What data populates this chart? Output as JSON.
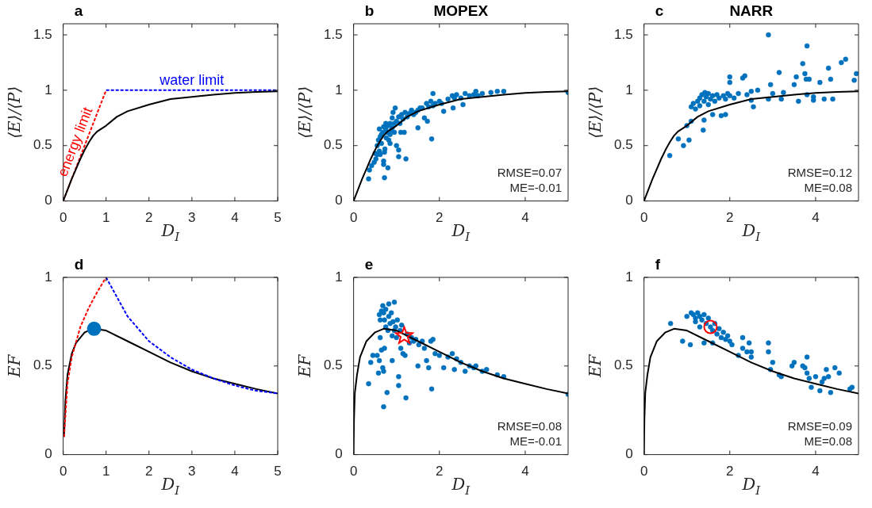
{
  "chart_data": [
    {
      "type": "line",
      "xlabel": "D$_{I}$",
      "ylabel": "⟨E⟩/⟨P⟩",
      "xlim": [
        0,
        5
      ],
      "ylim": [
        0,
        1.6
      ],
      "xticks": [
        0,
        1,
        2,
        3,
        4,
        5
      ],
      "yticks": [
        0,
        0.5,
        1,
        1.5
      ],
      "annotations": [
        "a",
        "energy limit",
        "water limit"
      ],
      "series": [
        {
          "color": "#ff0000",
          "line_style": "dashed",
          "x": [
            0,
            1
          ],
          "values": [
            0,
            1
          ]
        },
        {
          "color": "#0000ff",
          "line_style": "dashed",
          "x": [
            1,
            5
          ],
          "values": [
            1,
            1
          ]
        },
        {
          "color": "#000000",
          "line_style": "solid",
          "x": [
            0,
            0.1,
            0.2,
            0.3,
            0.4,
            0.5,
            0.6,
            0.7,
            0.8,
            1,
            1.25,
            1.5,
            2,
            2.5,
            3,
            3.5,
            4,
            4.5,
            5
          ],
          "values": [
            0,
            0.1,
            0.2,
            0.29,
            0.38,
            0.46,
            0.53,
            0.59,
            0.63,
            0.68,
            0.76,
            0.81,
            0.87,
            0.92,
            0.94,
            0.96,
            0.975,
            0.985,
            0.99
          ]
        }
      ]
    },
    {
      "type": "scatter",
      "title": "MOPEX",
      "xlabel": "D$_{I}$",
      "ylabel": "⟨E⟩/⟨P⟩",
      "xlim": [
        0,
        5
      ],
      "ylim": [
        0,
        1.6
      ],
      "xticks": [
        0,
        2,
        4
      ],
      "yticks": [
        0,
        0.5,
        1,
        1.5
      ],
      "annotations": [
        "b",
        "RMSE=0.07",
        "ME=-0.01"
      ],
      "series": [
        {
          "color": "#0072bd",
          "marker": "circle",
          "x": [
            0.35,
            0.37,
            0.42,
            0.48,
            0.5,
            0.52,
            0.55,
            0.55,
            0.58,
            0.6,
            0.6,
            0.62,
            0.62,
            0.65,
            0.65,
            0.68,
            0.7,
            0.7,
            0.7,
            0.72,
            0.72,
            0.73,
            0.75,
            0.75,
            0.76,
            0.78,
            0.8,
            0.8,
            0.82,
            0.85,
            0.85,
            0.85,
            0.88,
            0.9,
            0.9,
            0.92,
            0.95,
            0.95,
            0.97,
            1.0,
            1.0,
            1.05,
            1.05,
            1.05,
            1.08,
            1.1,
            1.12,
            1.15,
            1.18,
            1.2,
            1.22,
            1.25,
            1.3,
            1.35,
            1.4,
            1.45,
            1.5,
            1.5,
            1.55,
            1.6,
            1.65,
            1.7,
            1.72,
            1.75,
            1.8,
            1.82,
            1.85,
            1.85,
            1.9,
            2.0,
            2.05,
            2.1,
            2.2,
            2.3,
            2.32,
            2.35,
            2.4,
            2.5,
            2.55,
            2.6,
            2.7,
            2.8,
            2.85,
            2.9,
            3.0,
            3.2,
            3.35,
            3.5,
            5.0
          ],
          "values": [
            0.2,
            0.28,
            0.32,
            0.35,
            0.43,
            0.38,
            0.42,
            0.5,
            0.55,
            0.45,
            0.65,
            0.58,
            0.42,
            0.6,
            0.52,
            0.62,
            0.33,
            0.36,
            0.67,
            0.44,
            0.21,
            0.47,
            0.65,
            0.7,
            0.57,
            0.62,
            0.68,
            0.3,
            0.55,
            0.7,
            0.6,
            0.52,
            0.64,
            0.75,
            0.66,
            0.8,
            0.62,
            0.7,
            0.84,
            0.72,
            0.5,
            0.4,
            0.46,
            0.76,
            0.7,
            0.62,
            0.78,
            0.74,
            0.62,
            0.8,
            0.38,
            0.76,
            0.79,
            0.82,
            0.78,
            0.8,
            0.66,
            0.82,
            0.84,
            0.84,
            0.75,
            0.88,
            0.72,
            0.85,
            0.9,
            0.56,
            0.97,
            0.86,
            0.88,
            0.9,
            0.88,
            0.81,
            0.92,
            0.95,
            0.84,
            0.93,
            0.96,
            0.93,
            0.87,
            0.97,
            0.95,
            0.96,
            0.99,
            0.95,
            0.97,
            0.98,
            0.99,
            0.99,
            0.98
          ]
        },
        {
          "type": "line",
          "color": "#000000",
          "line_style": "solid",
          "x": [
            0,
            0.1,
            0.2,
            0.3,
            0.4,
            0.5,
            0.6,
            0.7,
            0.8,
            1,
            1.25,
            1.5,
            2,
            2.5,
            3,
            3.5,
            4,
            4.5,
            5
          ],
          "values": [
            0,
            0.1,
            0.2,
            0.29,
            0.38,
            0.46,
            0.53,
            0.59,
            0.63,
            0.68,
            0.76,
            0.81,
            0.87,
            0.92,
            0.94,
            0.96,
            0.975,
            0.985,
            0.99
          ]
        }
      ]
    },
    {
      "type": "scatter",
      "title": "NARR",
      "xlabel": "D$_{I}$",
      "ylabel": "⟨E⟩/⟨P⟩",
      "xlim": [
        0,
        5
      ],
      "ylim": [
        0,
        1.6
      ],
      "xticks": [
        0,
        2,
        4
      ],
      "yticks": [
        0,
        0.5,
        1,
        1.5
      ],
      "annotations": [
        "c",
        "RMSE=0.12",
        "ME=0.08"
      ],
      "series": [
        {
          "color": "#0072bd",
          "marker": "circle",
          "x": [
            0.6,
            0.8,
            0.92,
            1.0,
            1.05,
            1.1,
            1.1,
            1.15,
            1.2,
            1.25,
            1.3,
            1.3,
            1.35,
            1.38,
            1.4,
            1.4,
            1.42,
            1.45,
            1.5,
            1.5,
            1.55,
            1.6,
            1.6,
            1.65,
            1.7,
            1.75,
            1.8,
            1.85,
            1.9,
            1.9,
            1.95,
            2.0,
            2.0,
            2.0,
            2.1,
            2.2,
            2.3,
            2.35,
            2.4,
            2.5,
            2.5,
            2.55,
            2.65,
            2.9,
            2.9,
            2.95,
            3.0,
            3.15,
            3.2,
            3.25,
            3.5,
            3.55,
            3.6,
            3.7,
            3.75,
            3.78,
            3.8,
            3.8,
            3.85,
            3.95,
            3.95,
            4.1,
            4.2,
            4.3,
            4.35,
            4.4,
            4.6,
            4.7,
            4.9,
            4.95
          ],
          "values": [
            0.41,
            0.56,
            0.5,
            0.68,
            0.55,
            0.72,
            0.85,
            0.88,
            0.83,
            0.9,
            0.86,
            0.93,
            0.96,
            0.64,
            0.73,
            0.9,
            0.98,
            0.94,
            0.87,
            0.97,
            0.92,
            0.78,
            0.95,
            0.9,
            0.96,
            0.93,
            0.77,
            0.95,
            0.78,
            0.92,
            0.97,
            0.95,
            1.07,
            1.12,
            0.93,
            0.97,
            1.11,
            1.13,
            0.96,
            0.99,
            0.91,
            0.85,
            1.0,
            1.5,
            0.92,
            1.05,
            0.97,
            1.16,
            0.92,
            0.98,
            1.05,
            1.12,
            0.9,
            1.24,
            1.15,
            1.1,
            1.4,
            0.96,
            1.1,
            0.91,
            0.94,
            1.07,
            0.92,
            1.2,
            1.1,
            0.92,
            1.25,
            1.28,
            1.09,
            1.15
          ]
        },
        {
          "type": "line",
          "color": "#000000",
          "line_style": "solid",
          "x": [
            0,
            0.1,
            0.2,
            0.3,
            0.4,
            0.5,
            0.6,
            0.7,
            0.8,
            1,
            1.25,
            1.5,
            2,
            2.5,
            3,
            3.5,
            4,
            4.5,
            5
          ],
          "values": [
            0,
            0.1,
            0.2,
            0.29,
            0.38,
            0.46,
            0.53,
            0.59,
            0.63,
            0.68,
            0.76,
            0.81,
            0.87,
            0.92,
            0.94,
            0.96,
            0.975,
            0.985,
            0.99
          ]
        }
      ]
    },
    {
      "type": "line",
      "xlabel": "D$_{I}$",
      "ylabel": "EF",
      "xlim": [
        0,
        5
      ],
      "ylim": [
        0,
        1
      ],
      "xticks": [
        0,
        1,
        2,
        3,
        4,
        5
      ],
      "yticks": [
        0,
        0.5,
        1
      ],
      "annotations": [
        "d"
      ],
      "series": [
        {
          "color": "#000000",
          "line_style": "solid",
          "x": [
            0.02,
            0.05,
            0.1,
            0.2,
            0.3,
            0.5,
            0.7,
            1,
            1.5,
            2,
            2.5,
            3,
            3.5,
            4,
            4.5,
            5
          ],
          "values": [
            0.1,
            0.3,
            0.45,
            0.57,
            0.63,
            0.69,
            0.71,
            0.7,
            0.64,
            0.58,
            0.52,
            0.47,
            0.43,
            0.4,
            0.37,
            0.345
          ]
        },
        {
          "color": "#ff0000",
          "line_style": "dashed",
          "x": [
            0.02,
            0.1,
            0.2,
            0.4,
            0.6,
            0.8,
            1
          ],
          "values": [
            0.1,
            0.4,
            0.55,
            0.72,
            0.83,
            0.92,
            1
          ]
        },
        {
          "color": "#0000ff",
          "line_style": "dashed",
          "x": [
            1,
            1.5,
            2,
            2.5,
            3,
            3.5,
            4,
            4.5,
            5
          ],
          "values": [
            1,
            0.78,
            0.64,
            0.55,
            0.48,
            0.43,
            0.39,
            0.36,
            0.345
          ]
        },
        {
          "type": "scatter",
          "color": "#0072bd",
          "marker": "circle",
          "x": [
            0.72
          ],
          "values": [
            0.71
          ]
        }
      ]
    },
    {
      "type": "scatter",
      "xlabel": "D$_{I}$",
      "ylabel": "EF",
      "xlim": [
        0,
        5
      ],
      "ylim": [
        0,
        1
      ],
      "xticks": [
        0,
        2,
        4
      ],
      "yticks": [
        0,
        0.5,
        1
      ],
      "annotations": [
        "e",
        "RMSE=0.08",
        "ME=-0.01"
      ],
      "series": [
        {
          "color": "#0072bd",
          "marker": "circle",
          "x": [
            0.35,
            0.4,
            0.45,
            0.55,
            0.58,
            0.6,
            0.6,
            0.62,
            0.62,
            0.65,
            0.65,
            0.68,
            0.68,
            0.7,
            0.7,
            0.7,
            0.72,
            0.72,
            0.75,
            0.75,
            0.78,
            0.8,
            0.82,
            0.82,
            0.85,
            0.88,
            0.9,
            0.9,
            0.92,
            0.95,
            0.95,
            0.98,
            1.0,
            1.02,
            1.05,
            1.05,
            1.08,
            1.1,
            1.12,
            1.15,
            1.2,
            1.22,
            1.25,
            1.3,
            1.35,
            1.4,
            1.45,
            1.5,
            1.52,
            1.6,
            1.65,
            1.7,
            1.75,
            1.8,
            1.82,
            1.85,
            1.9,
            2.0,
            2.1,
            2.2,
            2.3,
            2.35,
            2.4,
            2.5,
            2.6,
            2.7,
            2.8,
            2.85,
            3.0,
            3.1,
            3.35,
            3.5,
            5.0
          ],
          "values": [
            0.4,
            0.52,
            0.56,
            0.56,
            0.46,
            0.53,
            0.79,
            0.66,
            0.76,
            0.59,
            0.81,
            0.49,
            0.84,
            0.27,
            0.47,
            0.8,
            0.6,
            0.76,
            0.82,
            0.72,
            0.35,
            0.7,
            0.78,
            0.85,
            0.74,
            0.8,
            0.67,
            0.53,
            0.75,
            0.86,
            0.7,
            0.72,
            0.66,
            0.76,
            0.44,
            0.39,
            0.7,
            0.6,
            0.73,
            0.57,
            0.56,
            0.32,
            0.68,
            0.63,
            0.66,
            0.64,
            0.65,
            0.5,
            0.62,
            0.64,
            0.6,
            0.53,
            0.49,
            0.64,
            0.37,
            0.65,
            0.57,
            0.56,
            0.49,
            0.55,
            0.57,
            0.48,
            0.54,
            0.52,
            0.47,
            0.5,
            0.49,
            0.5,
            0.47,
            0.48,
            0.45,
            0.44,
            0.34
          ]
        },
        {
          "type": "line",
          "color": "#000000",
          "line_style": "solid",
          "x": [
            0,
            0.01,
            0.03,
            0.08,
            0.15,
            0.3,
            0.5,
            0.7,
            1,
            1.5,
            2,
            2.5,
            3,
            3.5,
            4,
            4.5,
            5
          ],
          "values": [
            0,
            0.2,
            0.35,
            0.45,
            0.55,
            0.64,
            0.69,
            0.71,
            0.7,
            0.64,
            0.58,
            0.52,
            0.47,
            0.43,
            0.4,
            0.37,
            0.345
          ]
        },
        {
          "type": "scatter",
          "color": "#ff0000",
          "marker": "star",
          "x": [
            1.18
          ],
          "values": [
            0.67
          ]
        }
      ]
    },
    {
      "type": "scatter",
      "xlabel": "D$_{I}$",
      "ylabel": "EF",
      "xlim": [
        0,
        5
      ],
      "ylim": [
        0,
        1
      ],
      "xticks": [
        0,
        2,
        4
      ],
      "yticks": [
        0,
        0.5,
        1
      ],
      "annotations": [
        "f",
        "RMSE=0.09",
        "ME=0.08"
      ],
      "series": [
        {
          "color": "#0072bd",
          "marker": "circle",
          "x": [
            0.62,
            0.9,
            1.0,
            1.08,
            1.1,
            1.15,
            1.2,
            1.2,
            1.25,
            1.3,
            1.3,
            1.35,
            1.4,
            1.4,
            1.45,
            1.5,
            1.55,
            1.6,
            1.6,
            1.65,
            1.7,
            1.75,
            1.8,
            1.85,
            1.9,
            1.95,
            2.0,
            2.05,
            2.2,
            2.3,
            2.3,
            2.4,
            2.45,
            2.5,
            2.5,
            2.9,
            2.9,
            2.95,
            3.0,
            3.15,
            3.2,
            3.45,
            3.5,
            3.7,
            3.75,
            3.8,
            3.8,
            3.85,
            3.9,
            4.0,
            4.1,
            4.15,
            4.2,
            4.25,
            4.3,
            4.35,
            4.45,
            4.55,
            4.8,
            4.85
          ],
          "values": [
            0.74,
            0.64,
            0.78,
            0.62,
            0.8,
            0.79,
            0.77,
            0.75,
            0.8,
            0.78,
            0.72,
            0.76,
            0.79,
            0.63,
            0.74,
            0.77,
            0.72,
            0.7,
            0.63,
            0.74,
            0.68,
            0.71,
            0.66,
            0.69,
            0.65,
            0.67,
            0.64,
            0.62,
            0.56,
            0.6,
            0.66,
            0.58,
            0.63,
            0.58,
            0.55,
            0.63,
            0.58,
            0.48,
            0.52,
            0.45,
            0.44,
            0.5,
            0.52,
            0.5,
            0.49,
            0.55,
            0.46,
            0.43,
            0.38,
            0.44,
            0.36,
            0.41,
            0.43,
            0.48,
            0.44,
            0.35,
            0.49,
            0.46,
            0.37,
            0.38
          ]
        },
        {
          "type": "line",
          "color": "#000000",
          "line_style": "solid",
          "x": [
            0,
            0.01,
            0.03,
            0.08,
            0.15,
            0.3,
            0.5,
            0.7,
            1,
            1.5,
            2,
            2.5,
            3,
            3.5,
            4,
            4.5,
            5
          ],
          "values": [
            0,
            0.2,
            0.35,
            0.45,
            0.55,
            0.64,
            0.69,
            0.71,
            0.7,
            0.64,
            0.58,
            0.52,
            0.47,
            0.43,
            0.4,
            0.37,
            0.345
          ]
        },
        {
          "type": "scatter",
          "color": "#ff0000",
          "marker": "circle",
          "x": [
            1.55
          ],
          "values": [
            0.72
          ]
        }
      ]
    }
  ]
}
